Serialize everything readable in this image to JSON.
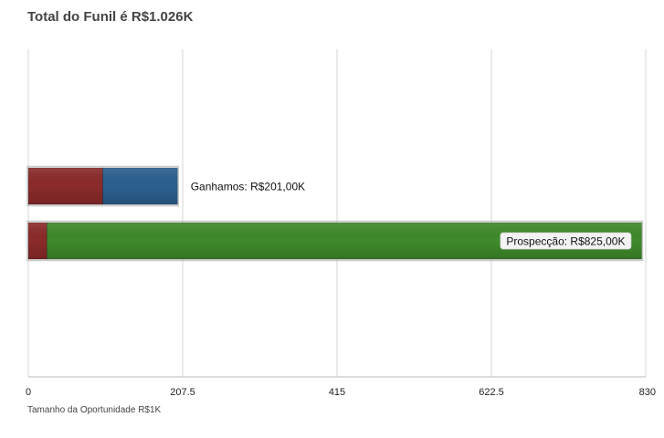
{
  "chart_data": {
    "type": "bar",
    "orientation": "horizontal",
    "stacked": true,
    "title": "Total do Funil é R$1.026K",
    "xlabel": "Tamanho da Oportunidade R$1K",
    "ylabel": "",
    "xlim": [
      0,
      830
    ],
    "x_ticks": [
      "0",
      "207.5",
      "415",
      "622.5",
      "830"
    ],
    "grid": true,
    "categories": [
      "Ganhamos",
      "Prospecção"
    ],
    "series": [
      {
        "color": "#8b2a2a",
        "values": [
          100,
          25
        ]
      },
      {
        "color": "#2c5f8f",
        "values": [
          101,
          0
        ]
      },
      {
        "color": "#3e8a2a",
        "values": [
          0,
          800
        ]
      }
    ],
    "labels": [
      "Ganhamos: R$201,00K",
      "Prospecção: R$825,00K"
    ]
  }
}
